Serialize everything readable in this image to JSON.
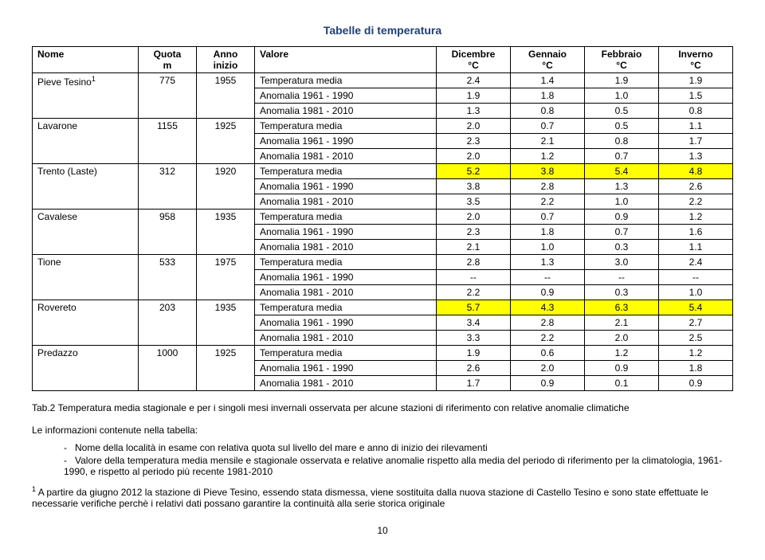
{
  "title": "Tabelle di temperatura",
  "columns": {
    "nome": "Nome",
    "quota": "Quota\nm",
    "anno": "Anno\ninizio",
    "valore": "Valore",
    "dicembre": "Dicembre\n°C",
    "gennaio": "Gennaio\n°C",
    "febbraio": "Febbraio\n°C",
    "inverno": "Inverno\n°C"
  },
  "valore_labels": {
    "temp": "Temperatura media",
    "a1": "Anomalia 1961 - 1990",
    "a2": "Anomalia 1981 - 2010"
  },
  "stations": [
    {
      "name": "Pieve Tesino",
      "sup": "1",
      "quota": "775",
      "anno": "1955",
      "temp": [
        "2.4",
        "1.4",
        "1.9",
        "1.9"
      ],
      "a1": [
        "1.9",
        "1.8",
        "1.0",
        "1.5"
      ],
      "a2": [
        "1.3",
        "0.8",
        "0.5",
        "0.8"
      ]
    },
    {
      "name": "Lavarone",
      "quota": "1155",
      "anno": "1925",
      "temp": [
        "2.0",
        "0.7",
        "0.5",
        "1.1"
      ],
      "a1": [
        "2.3",
        "2.1",
        "0.8",
        "1.7"
      ],
      "a2": [
        "2.0",
        "1.2",
        "0.7",
        "1.3"
      ]
    },
    {
      "name": "Trento (Laste)",
      "quota": "312",
      "anno": "1920",
      "temp": [
        "5.2",
        "3.8",
        "5.4",
        "4.8"
      ],
      "a1": [
        "3.8",
        "2.8",
        "1.3",
        "2.6"
      ],
      "a2": [
        "3.5",
        "2.2",
        "1.0",
        "2.2"
      ]
    },
    {
      "name": "Cavalese",
      "quota": "958",
      "anno": "1935",
      "temp": [
        "2.0",
        "0.7",
        "0.9",
        "1.2"
      ],
      "a1": [
        "2.3",
        "1.8",
        "0.7",
        "1.6"
      ],
      "a2": [
        "2.1",
        "1.0",
        "0.3",
        "1.1"
      ]
    },
    {
      "name": "Tione",
      "quota": "533",
      "anno": "1975",
      "temp": [
        "2.8",
        "1.3",
        "3.0",
        "2.4"
      ],
      "a1": [
        "--",
        "--",
        "--",
        "--"
      ],
      "a2": [
        "2.2",
        "0.9",
        "0.3",
        "1.0"
      ]
    },
    {
      "name": "Rovereto",
      "quota": "203",
      "anno": "1935",
      "temp": [
        "5.7",
        "4.3",
        "6.3",
        "5.4"
      ],
      "a1": [
        "3.4",
        "2.8",
        "2.1",
        "2.7"
      ],
      "a2": [
        "3.3",
        "2.2",
        "2.0",
        "2.5"
      ]
    },
    {
      "name": "Predazzo",
      "quota": "1000",
      "anno": "1925",
      "temp": [
        "1.9",
        "0.6",
        "1.2",
        "1.2"
      ],
      "a1": [
        "2.6",
        "2.0",
        "0.9",
        "1.8"
      ],
      "a2": [
        "1.7",
        "0.9",
        "0.1",
        "0.9"
      ]
    }
  ],
  "highlight_stations": [
    "Trento (Laste)",
    "Rovereto"
  ],
  "highlight_color": "#ffff00",
  "caption": "Tab.2 Temperatura media stagionale e per i singoli mesi invernali osservata per alcune stazioni di riferimento con relative anomalie climatiche",
  "info_header": "Le informazioni contenute nella tabella:",
  "bullets": [
    "Nome della località in esame con relativa quota sul livello del mare e anno di inizio dei rilevamenti",
    "Valore della temperatura media mensile e stagionale osservata e relative anomalie rispetto alla media del periodo di riferimento per la climatologia, 1961-1990, e rispetto al periodo più recente 1981-2010"
  ],
  "footnote_sup": "1",
  "footnote": " A partire da giugno 2012 la stazione di Pieve Tesino, essendo stata dismessa, viene sostituita dalla nuova stazione di Castello Tesino e sono state effettuate le necessarie verifiche perchè i relativi dati possano garantire la continuità alla serie storica originale",
  "page_number": "10"
}
